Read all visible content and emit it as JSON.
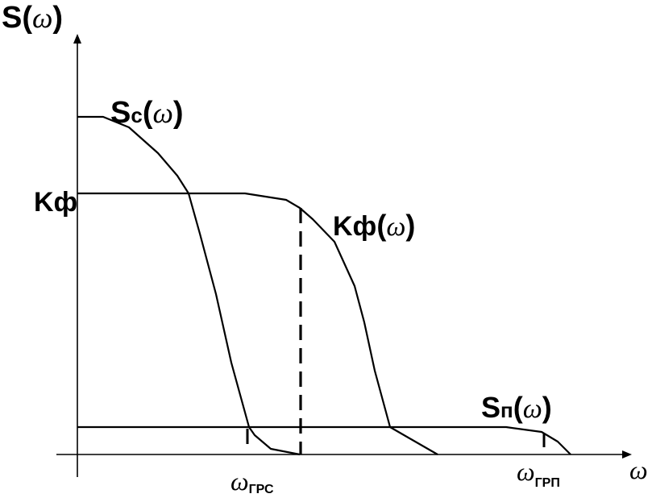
{
  "diagram": {
    "y_axis_label": {
      "main": "S(",
      "omega": "ω",
      "close": ")"
    },
    "x_axis_label": "ω",
    "kf_level_label": "Kф",
    "curves": {
      "signal": {
        "main": "S",
        "sub": "c",
        "open": "(",
        "omega": "ω",
        "close": ")"
      },
      "filter": {
        "main": "Kф",
        "open": "(",
        "omega": "ω",
        "close": ")"
      },
      "noise": {
        "main": "S",
        "sub": "п",
        "open": "(",
        "omega": "ω",
        "close": ")"
      }
    },
    "markers": {
      "omega_grs": {
        "omega": "ω",
        "sub": "ГРС"
      },
      "omega_grp": {
        "omega": "ω",
        "sub": "ГРП"
      }
    }
  }
}
